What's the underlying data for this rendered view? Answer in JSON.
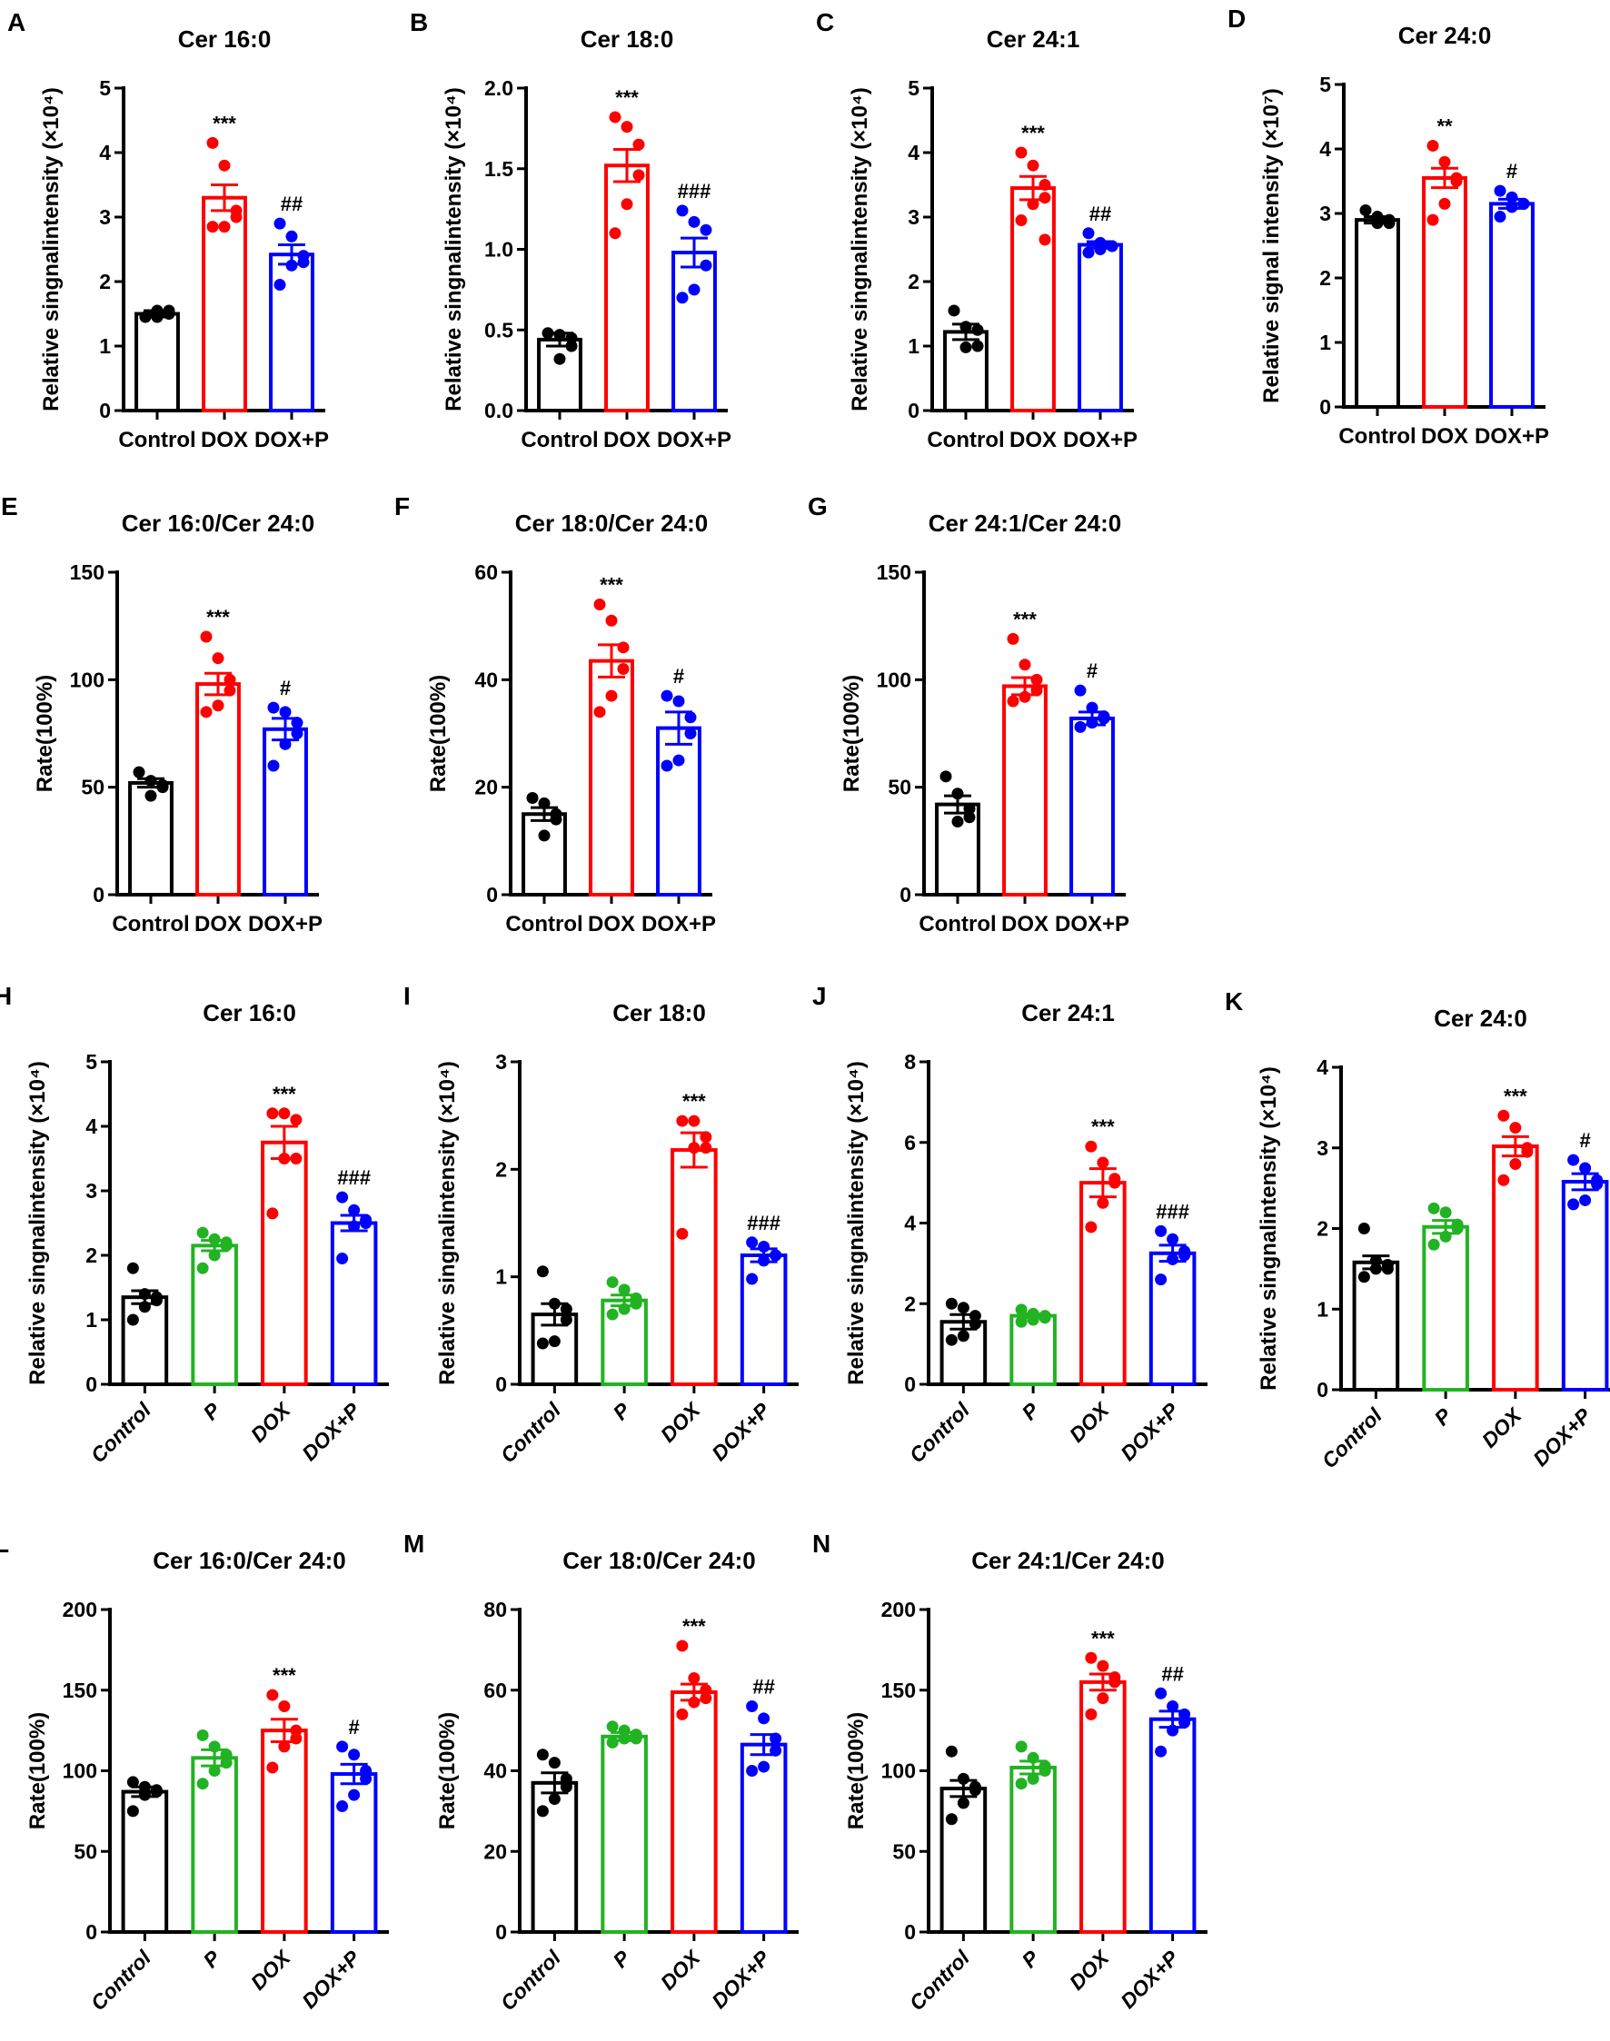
{
  "colors": {
    "Control": "#000000",
    "P": "#22b322",
    "DOX": "#ff0000",
    "DOX+P": "#0000ff"
  },
  "chart_data": [
    {
      "panel": "A",
      "type": "bar",
      "title": "Cer 16:0",
      "ylabel": "Relative singnalintensity (×10⁴)",
      "ylim": [
        0,
        5
      ],
      "yticks": [
        "0",
        "1",
        "2",
        "3",
        "4",
        "5"
      ],
      "categories": [
        "Control",
        "DOX",
        "DOX+P"
      ],
      "means": [
        1.5,
        3.3,
        2.42
      ],
      "sem": [
        0.05,
        0.2,
        0.15
      ],
      "points": [
        [
          1.45,
          1.55,
          1.5,
          1.55,
          1.45
        ],
        [
          4.15,
          3.8,
          3.1,
          3.0,
          2.85,
          2.85
        ],
        [
          2.9,
          2.7,
          2.4,
          2.3,
          2.25,
          1.95
        ]
      ],
      "annotations": [
        "",
        "***",
        "##"
      ]
    },
    {
      "panel": "B",
      "type": "bar",
      "title": "Cer 18:0",
      "ylabel": "Relative singnalintensity (×10⁴)",
      "ylim": [
        0,
        2
      ],
      "yticks": [
        "0.0",
        "0.5",
        "1.0",
        "1.5",
        "2.0"
      ],
      "categories": [
        "Control",
        "DOX",
        "DOX+P"
      ],
      "means": [
        0.44,
        1.52,
        0.98
      ],
      "sem": [
        0.04,
        0.1,
        0.09
      ],
      "points": [
        [
          0.48,
          0.47,
          0.45,
          0.4,
          0.32
        ],
        [
          1.82,
          1.76,
          1.65,
          1.46,
          1.28,
          1.1
        ],
        [
          1.24,
          1.17,
          1.12,
          0.9,
          0.75,
          0.7
        ]
      ],
      "annotations": [
        "",
        "***",
        "###"
      ]
    },
    {
      "panel": "C",
      "type": "bar",
      "title": "Cer 24:1",
      "ylabel": "Relative singnalintensity (×10⁴)",
      "ylim": [
        0,
        5
      ],
      "yticks": [
        "0",
        "1",
        "2",
        "3",
        "4",
        "5"
      ],
      "categories": [
        "Control",
        "DOX",
        "DOX+P"
      ],
      "means": [
        1.22,
        3.45,
        2.57
      ],
      "sem": [
        0.12,
        0.18,
        0.05
      ],
      "points": [
        [
          1.55,
          1.3,
          1.25,
          1.0,
          0.98
        ],
        [
          4.0,
          3.8,
          3.5,
          3.3,
          3.2,
          2.95,
          2.65
        ],
        [
          2.75,
          2.6,
          2.55,
          2.55,
          2.5,
          2.45
        ]
      ],
      "annotations": [
        "",
        "***",
        "##"
      ]
    },
    {
      "panel": "D",
      "type": "bar",
      "title": "Cer 24:0",
      "ylabel": "Relative signal intensity (×10⁷)",
      "ylim": [
        0,
        5
      ],
      "yticks": [
        "0",
        "1",
        "2",
        "3",
        "4",
        "5"
      ],
      "categories": [
        "Control",
        "DOX",
        "DOX+P"
      ],
      "means": [
        2.9,
        3.55,
        3.15
      ],
      "sem": [
        0.05,
        0.15,
        0.07
      ],
      "points": [
        [
          3.05,
          2.95,
          2.9,
          2.85,
          2.85
        ],
        [
          4.05,
          3.8,
          3.55,
          3.5,
          3.15,
          2.9
        ],
        [
          3.35,
          3.25,
          3.15,
          3.15,
          3.1,
          2.95
        ]
      ],
      "annotations": [
        "",
        "**",
        "#"
      ]
    },
    {
      "panel": "E",
      "type": "bar",
      "title": "Cer 16:0/Cer 24:0",
      "ylabel": "Rate(100%)",
      "ylim": [
        0,
        150
      ],
      "yticks": [
        "0",
        "50",
        "100",
        "150"
      ],
      "categories": [
        "Control",
        "DOX",
        "DOX+P"
      ],
      "means": [
        52,
        98,
        77
      ],
      "sem": [
        2,
        5,
        5
      ],
      "points": [
        [
          57,
          53,
          51,
          50,
          46
        ],
        [
          120,
          110,
          100,
          95,
          88,
          85
        ],
        [
          87,
          85,
          80,
          75,
          70,
          60
        ]
      ],
      "annotations": [
        "",
        "***",
        "#"
      ]
    },
    {
      "panel": "F",
      "type": "bar",
      "title": "Cer 18:0/Cer 24:0",
      "ylabel": "Rate(100%)",
      "ylim": [
        0,
        60
      ],
      "yticks": [
        "0",
        "20",
        "40",
        "60"
      ],
      "categories": [
        "Control",
        "DOX",
        "DOX+P"
      ],
      "means": [
        15,
        43.5,
        31
      ],
      "sem": [
        1.2,
        3,
        3
      ],
      "points": [
        [
          18,
          17,
          15,
          14,
          11
        ],
        [
          54,
          51,
          46,
          42,
          37,
          34
        ],
        [
          37,
          36,
          33,
          30,
          25,
          24
        ]
      ],
      "annotations": [
        "",
        "***",
        "#"
      ]
    },
    {
      "panel": "G",
      "type": "bar",
      "title": "Cer 24:1/Cer 24:0",
      "ylabel": "Rate(100%)",
      "ylim": [
        0,
        150
      ],
      "yticks": [
        "0",
        "50",
        "100",
        "150"
      ],
      "categories": [
        "Control",
        "DOX",
        "DOX+P"
      ],
      "means": [
        42,
        97,
        82
      ],
      "sem": [
        4,
        4,
        3
      ],
      "points": [
        [
          55,
          47,
          40,
          36,
          34
        ],
        [
          119,
          107,
          100,
          95,
          92,
          90
        ],
        [
          95,
          87,
          83,
          82,
          80,
          78
        ]
      ],
      "annotations": [
        "",
        "***",
        "#"
      ]
    },
    {
      "panel": "H",
      "type": "bar",
      "title": "Cer 16:0",
      "ylabel": "Relative singnalintensity (×10⁴)",
      "ylim": [
        0,
        5
      ],
      "yticks": [
        "0",
        "1",
        "2",
        "3",
        "4",
        "5"
      ],
      "categories": [
        "Control",
        "P",
        "DOX",
        "DOX+P"
      ],
      "means": [
        1.35,
        2.15,
        3.75,
        2.5
      ],
      "sem": [
        0.1,
        0.08,
        0.25,
        0.12
      ],
      "points": [
        [
          1.8,
          1.4,
          1.35,
          1.3,
          1.2,
          1.0
        ],
        [
          2.35,
          2.25,
          2.2,
          2.15,
          2.0,
          1.8
        ],
        [
          4.2,
          4.2,
          4.1,
          3.5,
          3.5,
          2.65
        ],
        [
          2.9,
          2.7,
          2.55,
          2.5,
          2.45,
          1.95
        ]
      ],
      "annotations": [
        "",
        "",
        "***",
        "###"
      ]
    },
    {
      "panel": "I",
      "type": "bar",
      "title": "Cer 18:0",
      "ylabel": "Relative singnalintensity (×10⁴)",
      "ylim": [
        0,
        3
      ],
      "yticks": [
        "0",
        "1",
        "2",
        "3"
      ],
      "categories": [
        "Control",
        "P",
        "DOX",
        "DOX+P"
      ],
      "means": [
        0.65,
        0.78,
        2.18,
        1.2
      ],
      "sem": [
        0.1,
        0.05,
        0.16,
        0.06
      ],
      "points": [
        [
          1.05,
          0.75,
          0.7,
          0.6,
          0.4,
          0.38
        ],
        [
          0.95,
          0.88,
          0.8,
          0.75,
          0.7,
          0.65
        ],
        [
          2.45,
          2.45,
          2.3,
          2.2,
          2.2,
          1.4
        ],
        [
          1.32,
          1.28,
          1.2,
          1.2,
          1.15,
          0.98
        ]
      ],
      "annotations": [
        "",
        "",
        "***",
        "###"
      ]
    },
    {
      "panel": "J",
      "type": "bar",
      "title": "Cer 24:1",
      "ylabel": "Relative singnalintensity (×10⁴)",
      "ylim": [
        0,
        8
      ],
      "yticks": [
        "0",
        "2",
        "4",
        "6",
        "8"
      ],
      "categories": [
        "Control",
        "P",
        "DOX",
        "DOX+P"
      ],
      "means": [
        1.55,
        1.7,
        5.0,
        3.25
      ],
      "sem": [
        0.18,
        0.05,
        0.35,
        0.2
      ],
      "points": [
        [
          2.0,
          1.9,
          1.7,
          1.5,
          1.2,
          1.1
        ],
        [
          1.85,
          1.75,
          1.7,
          1.65,
          1.6,
          1.55
        ],
        [
          5.9,
          5.5,
          5.1,
          5.0,
          4.5,
          3.9
        ],
        [
          3.8,
          3.6,
          3.3,
          3.2,
          3.1,
          2.6
        ]
      ],
      "annotations": [
        "",
        "",
        "***",
        "###"
      ]
    },
    {
      "panel": "K",
      "type": "bar",
      "title": "Cer 24:0",
      "ylabel": "Relative singnalintensity (×10⁴)",
      "ylim": [
        0,
        4
      ],
      "yticks": [
        "0",
        "1",
        "2",
        "3",
        "4"
      ],
      "categories": [
        "Control",
        "P",
        "DOX",
        "DOX+P"
      ],
      "means": [
        1.58,
        2.02,
        3.02,
        2.58
      ],
      "sem": [
        0.08,
        0.08,
        0.12,
        0.1
      ],
      "points": [
        [
          2.0,
          1.6,
          1.55,
          1.5,
          1.5,
          1.4
        ],
        [
          2.25,
          2.2,
          2.05,
          2.0,
          1.9,
          1.8
        ],
        [
          3.4,
          3.25,
          3.0,
          2.95,
          2.8,
          2.6
        ],
        [
          2.85,
          2.75,
          2.6,
          2.55,
          2.35,
          2.3
        ]
      ],
      "annotations": [
        "",
        "",
        "***",
        "#"
      ]
    },
    {
      "panel": "L",
      "type": "bar",
      "title": "Cer 16:0/Cer 24:0",
      "ylabel": "Rate(100%)",
      "ylim": [
        0,
        200
      ],
      "yticks": [
        "0",
        "50",
        "100",
        "150",
        "200"
      ],
      "categories": [
        "Control",
        "P",
        "DOX",
        "DOX+P"
      ],
      "means": [
        87,
        108,
        125,
        98
      ],
      "sem": [
        3,
        5,
        7,
        6
      ],
      "points": [
        [
          93,
          90,
          88,
          87,
          85,
          75
        ],
        [
          122,
          115,
          110,
          105,
          100,
          92
        ],
        [
          147,
          140,
          125,
          120,
          115,
          102
        ],
        [
          115,
          110,
          100,
          95,
          85,
          78
        ]
      ],
      "annotations": [
        "",
        "",
        "***",
        "#"
      ]
    },
    {
      "panel": "M",
      "type": "bar",
      "title": "Cer 18:0/Cer 24:0",
      "ylabel": "Rate(100%)",
      "ylim": [
        0,
        80
      ],
      "yticks": [
        "0",
        "20",
        "40",
        "60",
        "80"
      ],
      "categories": [
        "Control",
        "P",
        "DOX",
        "DOX+P"
      ],
      "means": [
        37,
        48.5,
        59.5,
        46.5
      ],
      "sem": [
        2.5,
        1,
        2,
        2.5
      ],
      "points": [
        [
          44,
          42,
          38,
          36,
          33,
          30
        ],
        [
          51,
          50,
          49,
          48,
          48,
          47
        ],
        [
          71,
          63,
          60,
          58,
          57,
          54
        ],
        [
          56,
          53,
          48,
          45,
          41,
          40
        ]
      ],
      "annotations": [
        "",
        "",
        "***",
        "##"
      ]
    },
    {
      "panel": "N",
      "type": "bar",
      "title": "Cer 24:1/Cer 24:0",
      "ylabel": "Rate(100%)",
      "ylim": [
        0,
        200
      ],
      "yticks": [
        "0",
        "50",
        "100",
        "150",
        "200"
      ],
      "categories": [
        "Control",
        "P",
        "DOX",
        "DOX+P"
      ],
      "means": [
        89,
        102,
        155,
        132
      ],
      "sem": [
        5,
        4,
        5,
        5
      ],
      "points": [
        [
          112,
          95,
          90,
          88,
          80,
          70
        ],
        [
          115,
          108,
          103,
          100,
          95,
          92
        ],
        [
          170,
          165,
          158,
          155,
          145,
          135
        ],
        [
          148,
          140,
          135,
          130,
          125,
          112
        ]
      ],
      "annotations": [
        "",
        "",
        "***",
        "##"
      ]
    }
  ]
}
